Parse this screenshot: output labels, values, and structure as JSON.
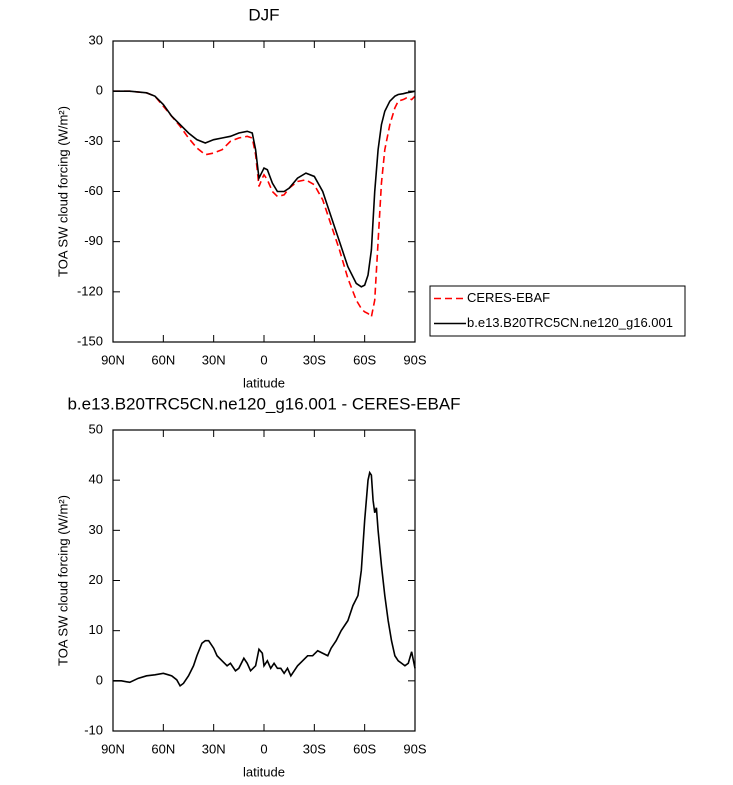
{
  "chart_data": [
    {
      "type": "line",
      "title": "DJF",
      "xlabel": "latitude",
      "ylabel": "TOA SW cloud forcing (W/m²)",
      "xlim": [
        90,
        -90
      ],
      "ylim": [
        30,
        -150
      ],
      "xticks": [
        {
          "value": 90,
          "label": "90N"
        },
        {
          "value": 60,
          "label": "60N"
        },
        {
          "value": 30,
          "label": "30N"
        },
        0,
        {
          "value": -30,
          "label": "30S"
        },
        {
          "value": -60,
          "label": "60S"
        },
        {
          "value": -90,
          "label": "90S"
        }
      ],
      "yticks": [
        30,
        0,
        -30,
        -60,
        -90,
        -120,
        -150
      ],
      "legend_position": "right",
      "x": [
        90,
        80,
        70,
        65,
        60,
        55,
        50,
        45,
        40,
        35,
        30,
        25,
        20,
        15,
        10,
        7,
        5,
        3,
        1,
        0,
        -2,
        -5,
        -8,
        -12,
        -15,
        -20,
        -25,
        -30,
        -35,
        -40,
        -45,
        -50,
        -55,
        -58,
        -60,
        -62,
        -64,
        -66,
        -68,
        -70,
        -72,
        -75,
        -78,
        -80,
        -83,
        -85,
        -88,
        -90
      ],
      "series": [
        {
          "name": "CERES-EBAF",
          "color": "#ff0000",
          "line_style": "dashed",
          "values": [
            0,
            0,
            -1,
            -3,
            -9,
            -15,
            -21,
            -28,
            -34,
            -38,
            -37,
            -35,
            -30,
            -28,
            -27,
            -28,
            -38,
            -57,
            -52,
            -50,
            -53,
            -60,
            -63,
            -62,
            -58,
            -54,
            -53,
            -56,
            -65,
            -80,
            -95,
            -112,
            -125,
            -130,
            -132,
            -133,
            -135,
            -125,
            -90,
            -55,
            -35,
            -20,
            -10,
            -6,
            -5,
            -4,
            -5,
            -3
          ]
        },
        {
          "name": "b.e13.B20TRC5CN.ne120_g16.001",
          "color": "#000000",
          "line_style": "solid",
          "values": [
            0,
            0,
            -1,
            -3,
            -8,
            -15,
            -20,
            -25,
            -29,
            -31,
            -29,
            -28,
            -27,
            -25,
            -24,
            -25,
            -35,
            -52,
            -48,
            -46,
            -47,
            -55,
            -60,
            -60,
            -58,
            -52,
            -49,
            -51,
            -60,
            -75,
            -90,
            -105,
            -115,
            -117,
            -116,
            -110,
            -95,
            -60,
            -35,
            -20,
            -12,
            -6,
            -3,
            -2,
            -1.5,
            -1,
            -0.5,
            0
          ]
        }
      ]
    },
    {
      "type": "line",
      "title": "b.e13.B20TRC5CN.ne120_g16.001 - CERES-EBAF",
      "xlabel": "latitude",
      "ylabel": "TOA SW cloud forcing (W/m²)",
      "xlim": [
        90,
        -90
      ],
      "ylim": [
        50,
        -10
      ],
      "xticks": [
        {
          "value": 90,
          "label": "90N"
        },
        {
          "value": 60,
          "label": "60N"
        },
        {
          "value": 30,
          "label": "30N"
        },
        0,
        {
          "value": -30,
          "label": "30S"
        },
        {
          "value": -60,
          "label": "60S"
        },
        {
          "value": -90,
          "label": "90S"
        }
      ],
      "yticks": [
        50,
        40,
        30,
        20,
        10,
        0,
        -10
      ],
      "x": [
        90,
        85,
        80,
        75,
        70,
        65,
        60,
        57,
        55,
        52,
        50,
        48,
        45,
        42,
        40,
        37,
        35,
        33,
        30,
        28,
        25,
        22,
        20,
        17,
        15,
        12,
        10,
        8,
        5,
        3,
        1,
        0,
        -2,
        -4,
        -6,
        -8,
        -10,
        -12,
        -14,
        -16,
        -18,
        -20,
        -23,
        -26,
        -29,
        -32,
        -35,
        -38,
        -40,
        -43,
        -46,
        -50,
        -53,
        -56,
        -58,
        -60,
        -62,
        -63,
        -64,
        -65,
        -66,
        -67,
        -68,
        -70,
        -72,
        -74,
        -76,
        -78,
        -80,
        -82,
        -84,
        -86,
        -88,
        -90
      ],
      "series": [
        {
          "color": "#000000",
          "line_style": "solid",
          "values": [
            0,
            0,
            -0.3,
            0.5,
            1,
            1.2,
            1.5,
            1.2,
            1,
            0.2,
            -1,
            -0.5,
            1,
            3,
            5,
            7.5,
            8,
            8,
            6.5,
            5,
            4,
            3,
            3.5,
            2,
            2.5,
            4.5,
            3.5,
            2,
            3,
            6.3,
            5.5,
            3,
            4,
            2.5,
            3.5,
            2.5,
            2.5,
            1.5,
            2.5,
            1,
            2,
            3,
            4,
            5,
            5,
            6,
            5.5,
            5,
            6.5,
            8,
            10,
            12,
            15,
            17,
            22,
            32,
            40,
            41.5,
            41,
            36,
            33.5,
            34.5,
            30,
            23,
            17,
            12,
            8,
            5,
            4,
            3.5,
            3,
            3.5,
            5.8,
            2.5
          ]
        }
      ]
    }
  ]
}
